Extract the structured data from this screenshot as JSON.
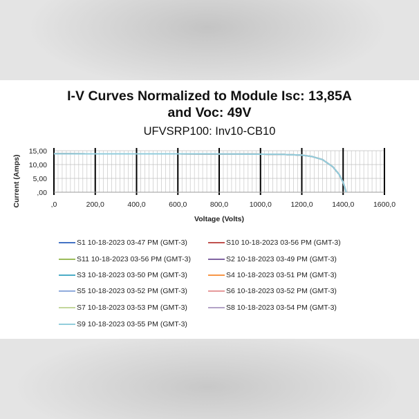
{
  "chart_data": {
    "type": "line",
    "title": "I-V Curves Normalized to Module Isc: 13,85A and Voc: 49V",
    "title_lines": [
      "I-V Curves Normalized to Module Isc: 13,85A",
      "and Voc: 49V"
    ],
    "subtitle": "UFVSRP100: Inv10-CB10",
    "xlabel": "Voltage (Volts)",
    "ylabel": "Current (Amps)",
    "xlim": [
      0,
      1600
    ],
    "ylim": [
      0,
      15
    ],
    "x_ticks": [
      0,
      200,
      400,
      600,
      800,
      1000,
      1200,
      1400,
      1600
    ],
    "x_tick_labels": [
      ",0",
      "200,0",
      "400,0",
      "600,0",
      "800,0",
      "1000,0",
      "1200,0",
      "1400,0",
      "1600,0"
    ],
    "y_ticks": [
      0,
      5,
      10,
      15
    ],
    "y_tick_labels": [
      ",00",
      "5,00",
      "10,00",
      "15,00"
    ],
    "grid": true,
    "legend_position": "bottom",
    "series": [
      {
        "name": "S1 10-18-2023 03-47 PM (GMT-3)",
        "color": "#4472c4",
        "x": [
          0,
          800,
          1100,
          1200,
          1250,
          1300,
          1350,
          1380,
          1400,
          1415
        ],
        "y": [
          13.9,
          13.85,
          13.7,
          13.4,
          12.9,
          11.8,
          9.2,
          6.5,
          3.6,
          0
        ]
      },
      {
        "name": "S10 10-18-2023 03-56 PM (GMT-3)",
        "color": "#c0504d",
        "x": [
          0,
          800,
          1100,
          1200,
          1250,
          1300,
          1350,
          1380,
          1400,
          1415
        ],
        "y": [
          13.9,
          13.85,
          13.7,
          13.4,
          12.9,
          11.8,
          9.2,
          6.5,
          3.6,
          0
        ]
      },
      {
        "name": "S11 10-18-2023 03-56 PM (GMT-3)",
        "color": "#9bbb59",
        "x": [
          0,
          800,
          1100,
          1200,
          1250,
          1300,
          1350,
          1380,
          1400,
          1415
        ],
        "y": [
          13.9,
          13.85,
          13.7,
          13.4,
          12.9,
          11.8,
          9.2,
          6.5,
          3.6,
          0
        ]
      },
      {
        "name": "S2 10-18-2023 03-49 PM (GMT-3)",
        "color": "#8064a2",
        "x": [
          0,
          800,
          1100,
          1200,
          1250,
          1300,
          1350,
          1380,
          1400,
          1415
        ],
        "y": [
          13.9,
          13.85,
          13.7,
          13.4,
          12.9,
          11.8,
          9.2,
          6.5,
          3.6,
          0
        ]
      },
      {
        "name": "S3 10-18-2023 03-50 PM (GMT-3)",
        "color": "#4bacc6",
        "x": [
          0,
          800,
          1100,
          1200,
          1250,
          1300,
          1350,
          1380,
          1400,
          1415
        ],
        "y": [
          13.9,
          13.85,
          13.7,
          13.4,
          12.9,
          11.8,
          9.2,
          6.5,
          3.6,
          0
        ]
      },
      {
        "name": "S4 10-18-2023 03-51 PM (GMT-3)",
        "color": "#f79646",
        "x": [
          0,
          800,
          1100,
          1200,
          1250,
          1300,
          1350,
          1380,
          1400,
          1415
        ],
        "y": [
          13.9,
          13.85,
          13.7,
          13.4,
          12.9,
          11.8,
          9.2,
          6.5,
          3.6,
          0
        ]
      },
      {
        "name": "S5 10-18-2023 03-52 PM (GMT-3)",
        "color": "#8faadc",
        "x": [
          0,
          800,
          1100,
          1200,
          1250,
          1300,
          1350,
          1380,
          1400,
          1415
        ],
        "y": [
          13.9,
          13.85,
          13.7,
          13.4,
          12.9,
          11.8,
          9.2,
          6.5,
          3.6,
          0
        ]
      },
      {
        "name": "S6 10-18-2023 03-52 PM (GMT-3)",
        "color": "#e6999a",
        "x": [
          0,
          800,
          1100,
          1200,
          1250,
          1300,
          1350,
          1380,
          1400,
          1415
        ],
        "y": [
          13.9,
          13.85,
          13.7,
          13.4,
          12.9,
          11.8,
          9.2,
          6.5,
          3.6,
          0
        ]
      },
      {
        "name": "S7 10-18-2023 03-53 PM (GMT-3)",
        "color": "#c3d69b",
        "x": [
          0,
          800,
          1100,
          1200,
          1250,
          1300,
          1350,
          1380,
          1400,
          1415
        ],
        "y": [
          13.9,
          13.85,
          13.7,
          13.4,
          12.9,
          11.8,
          9.2,
          6.5,
          3.6,
          0
        ]
      },
      {
        "name": "S8 10-18-2023 03-54 PM (GMT-3)",
        "color": "#b3a2c7",
        "x": [
          0,
          800,
          1100,
          1200,
          1250,
          1300,
          1350,
          1380,
          1400,
          1415
        ],
        "y": [
          13.9,
          13.85,
          13.7,
          13.4,
          12.9,
          11.8,
          9.2,
          6.5,
          3.6,
          0
        ]
      },
      {
        "name": "S9 10-18-2023 03-55 PM (GMT-3)",
        "color": "#92cddc",
        "x": [
          0,
          800,
          1100,
          1200,
          1250,
          1300,
          1350,
          1380,
          1400,
          1415
        ],
        "y": [
          13.9,
          13.85,
          13.7,
          13.4,
          12.9,
          11.8,
          9.2,
          6.5,
          3.6,
          0
        ]
      }
    ]
  }
}
